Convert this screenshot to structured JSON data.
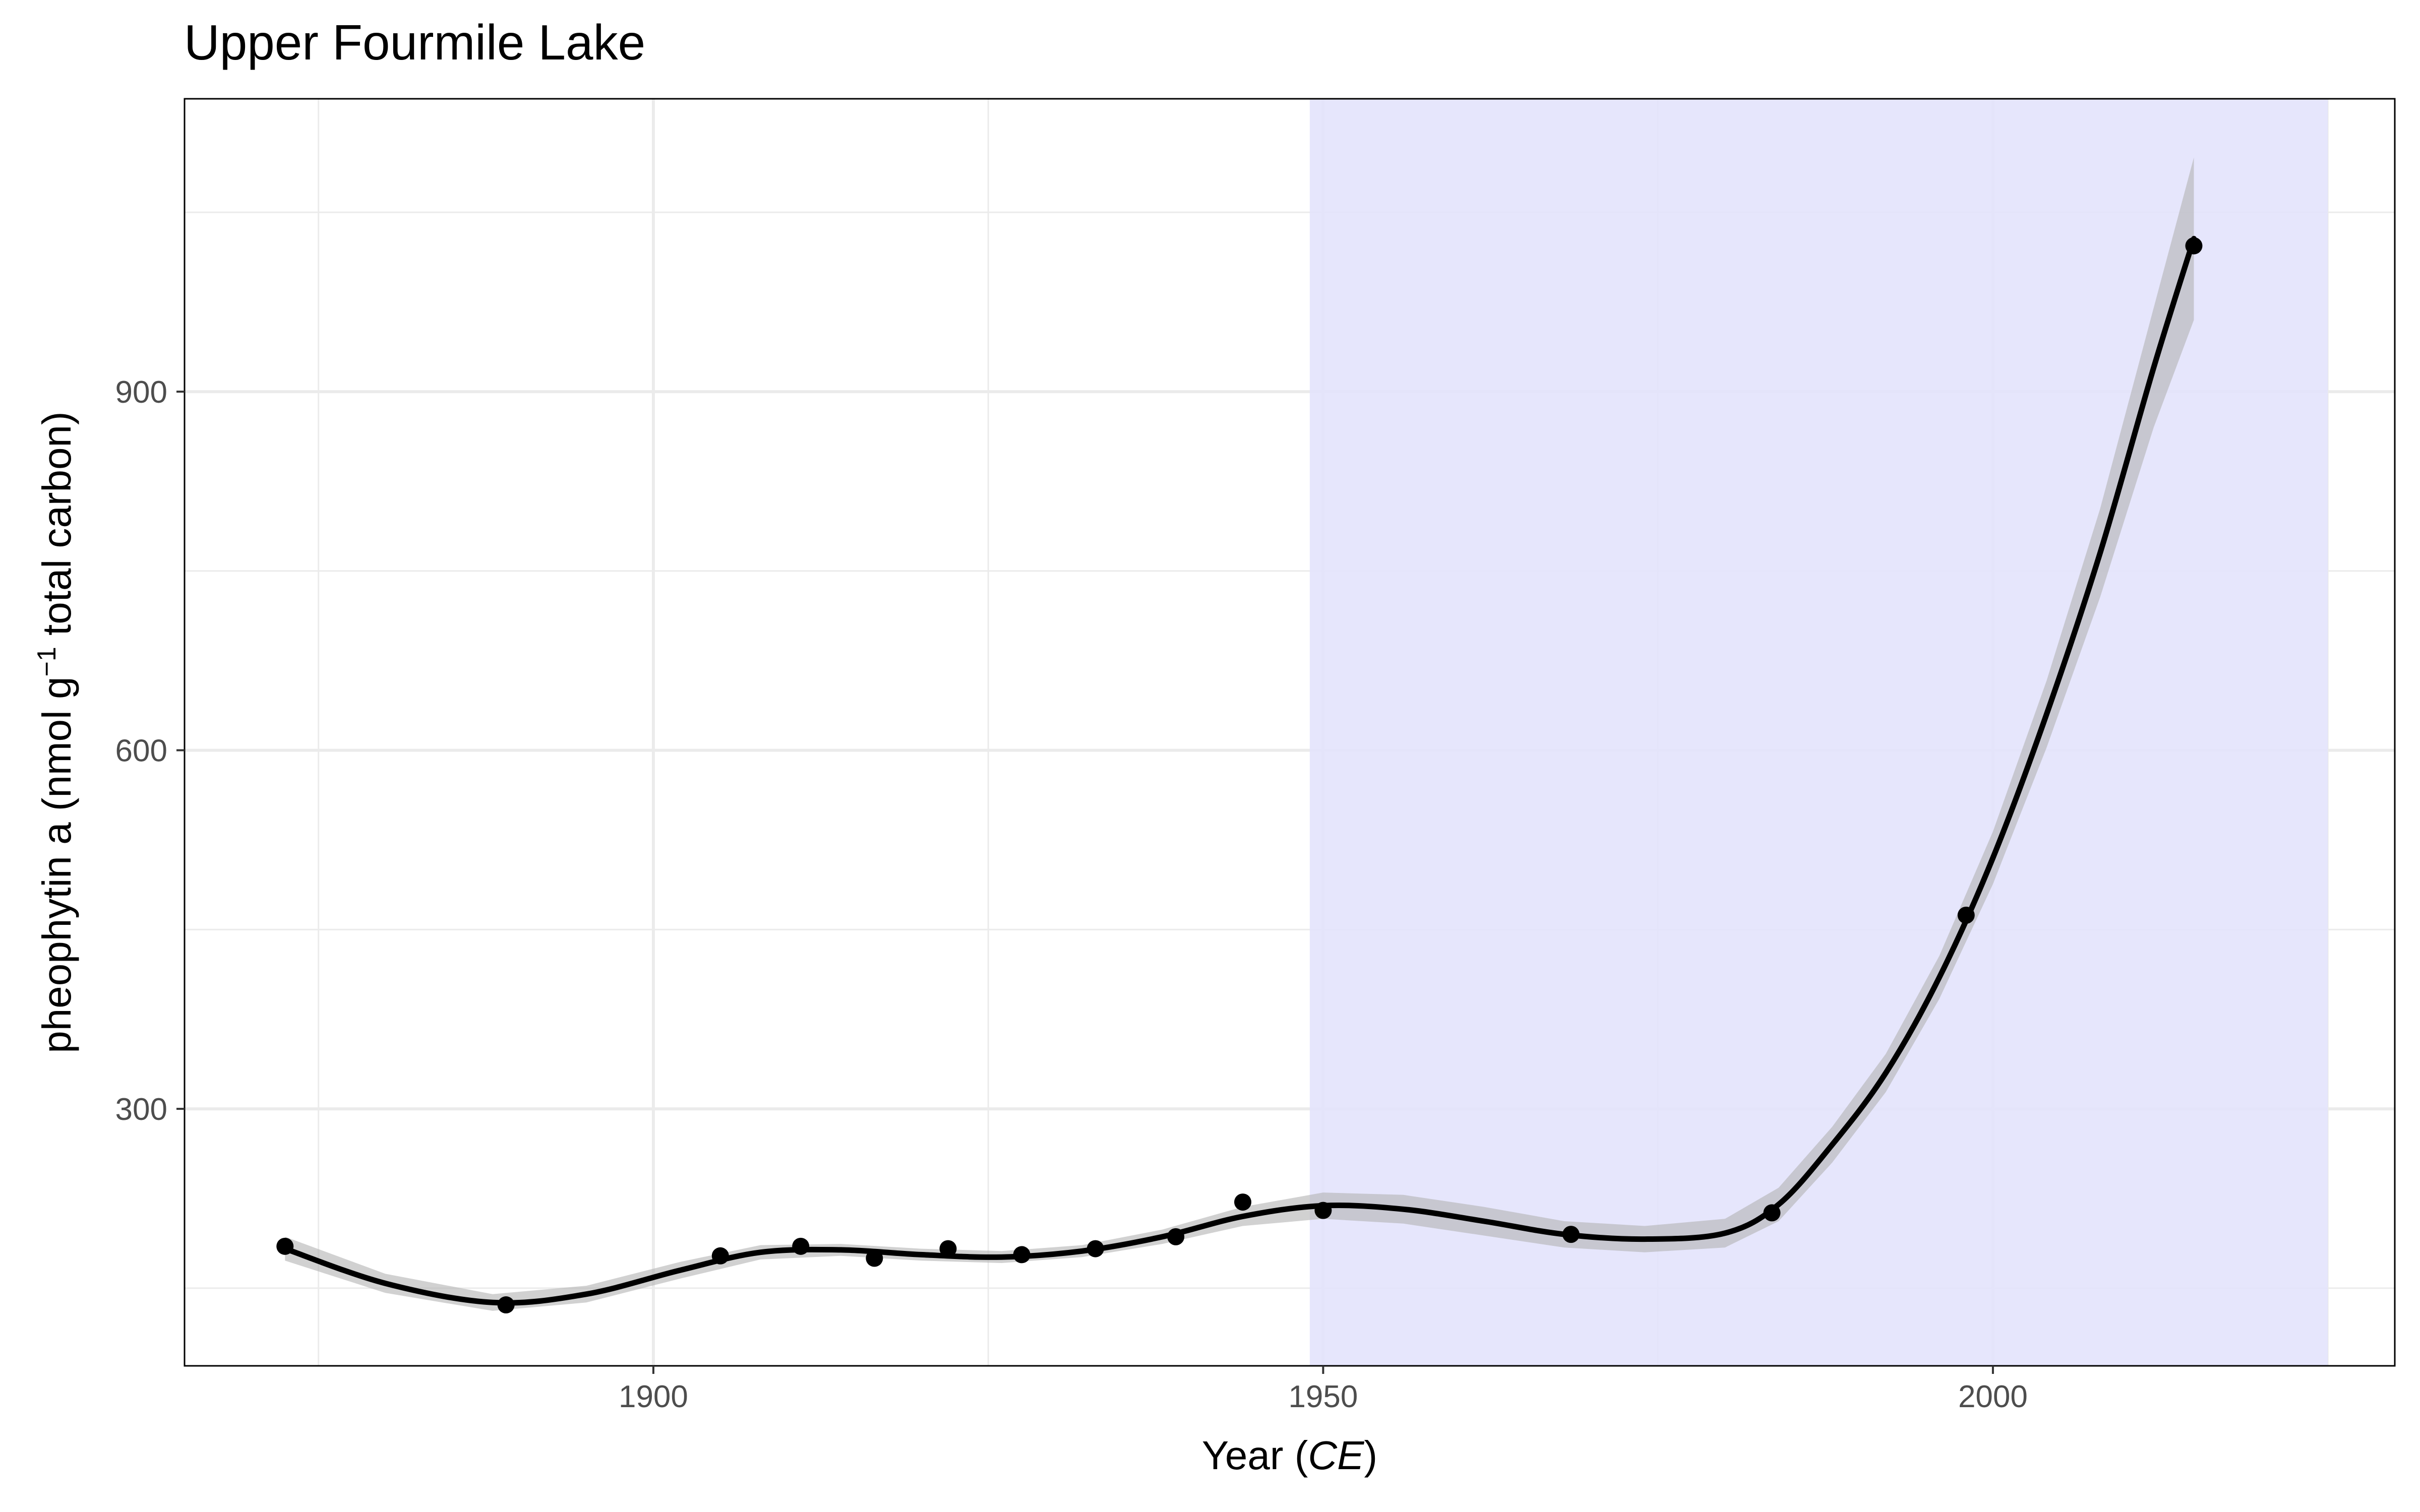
{
  "chart_data": {
    "type": "line",
    "title": "Upper Fourmile Lake",
    "xlabel": {
      "prefix": "Year (",
      "italic": "CE",
      "suffix": ")"
    },
    "ylabel": {
      "prefix": "pheophytin a (nmol g",
      "superscript": "−1",
      "suffix": " total carbon)"
    },
    "xlim": [
      1865,
      2030
    ],
    "ylim": [
      85,
      1145
    ],
    "x_major_ticks": [
      1900,
      1950,
      2000
    ],
    "x_minor_ticks": [
      1875,
      1925,
      1975,
      2025
    ],
    "y_major_ticks": [
      300,
      600,
      900
    ],
    "y_minor_ticks": [
      150,
      450,
      750,
      1050
    ],
    "grid": true,
    "shaded_region": {
      "x_start": 1949,
      "x_end": 2025,
      "color": "#e3e3fc"
    },
    "points": {
      "x": [
        1872.5,
        1889,
        1905,
        1911,
        1916.5,
        1922,
        1927.5,
        1933,
        1939,
        1944,
        1950,
        1968.5,
        1983.5,
        1998,
        2015
      ],
      "y": [
        185,
        136,
        177,
        185,
        175,
        183,
        178,
        183,
        193,
        222,
        215,
        195,
        213,
        462,
        1022
      ]
    },
    "fit": {
      "x": [
        1872.5,
        1880,
        1888,
        1895,
        1902,
        1908,
        1914,
        1920,
        1926,
        1932,
        1938,
        1944,
        1950,
        1956,
        1962,
        1968,
        1974,
        1980,
        1984,
        1988,
        1992,
        1996,
        2000,
        2004,
        2008,
        2012,
        2015
      ],
      "y": [
        183,
        154,
        138,
        145,
        165,
        180,
        182,
        178,
        176,
        181,
        193,
        210,
        219,
        216,
        206,
        195,
        191,
        196,
        220,
        270,
        330,
        410,
        510,
        630,
        765,
        920,
        1028
      ],
      "ci_lower": [
        173,
        146,
        131,
        138,
        158,
        174,
        177,
        173,
        171,
        176,
        187,
        202,
        208,
        204,
        194,
        184,
        180,
        184,
        206,
        255,
        314,
        392,
        488,
        602,
        728,
        870,
        960
      ],
      "ci_upper": [
        193,
        162,
        145,
        152,
        172,
        186,
        187,
        183,
        181,
        186,
        199,
        218,
        230,
        228,
        218,
        206,
        202,
        208,
        234,
        285,
        346,
        428,
        532,
        658,
        802,
        970,
        1096
      ]
    },
    "colors": {
      "fit_line": "#000000",
      "points": "#000000",
      "ci_band": "#b3b3b3",
      "panel_border": "#000000",
      "grid": "#ebebeb"
    }
  }
}
